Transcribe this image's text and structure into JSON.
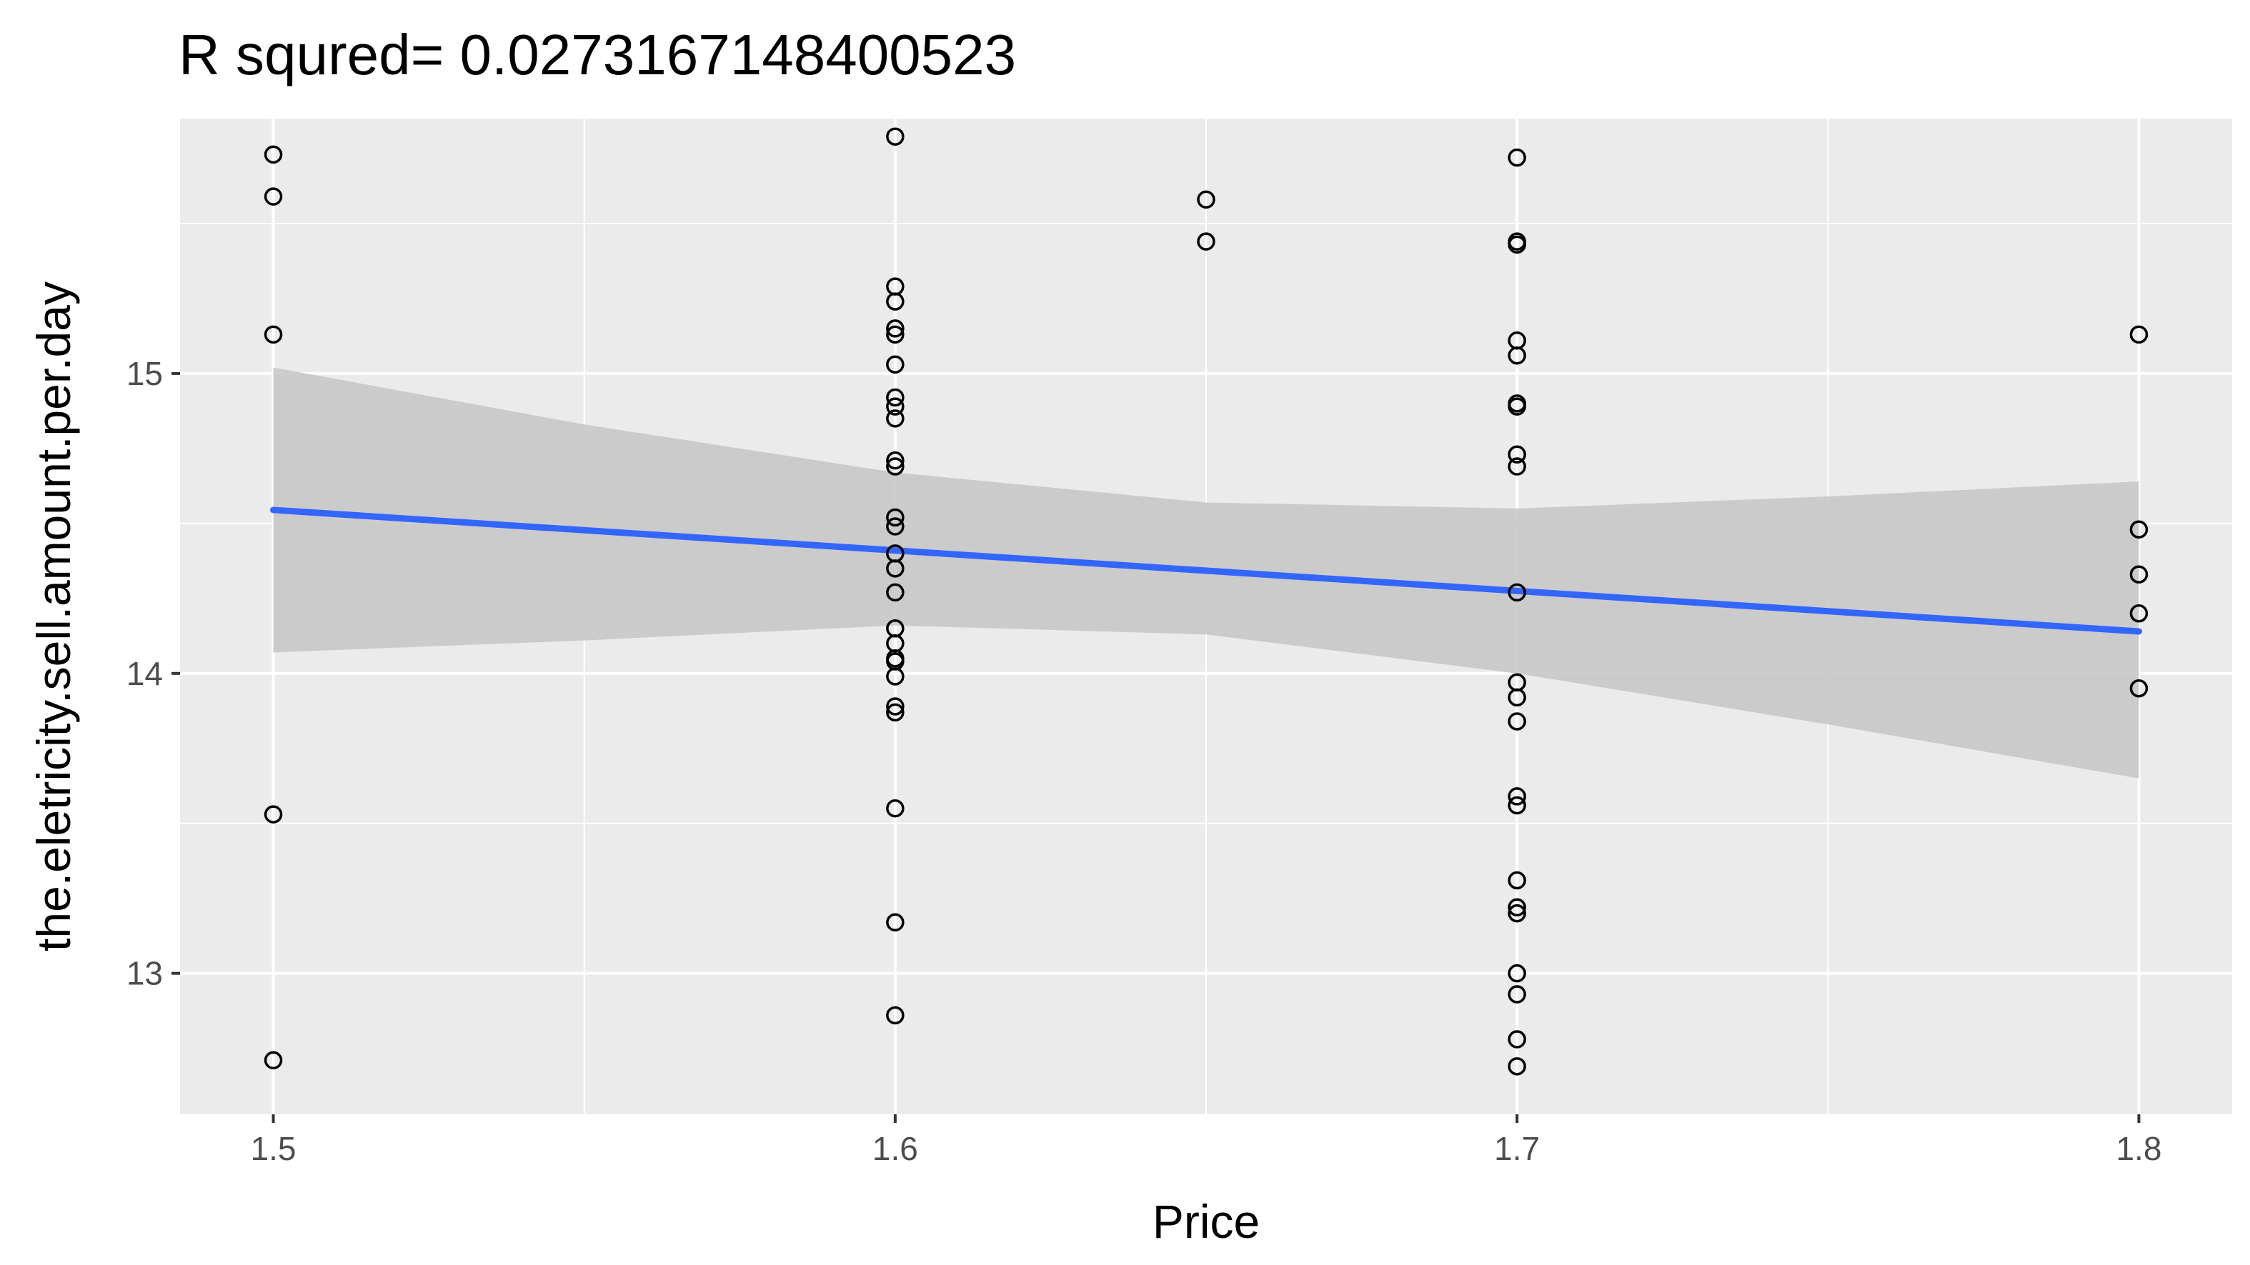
{
  "chart_data": {
    "type": "scatter",
    "title": "R squred= 0.0273167148400523",
    "xlabel": "Price",
    "ylabel": "the.eletricity.sell.amount.per.day",
    "xlim": [
      1.485,
      1.815
    ],
    "ylim": [
      12.53,
      15.85
    ],
    "x_ticks": [
      1.5,
      1.6,
      1.7,
      1.8
    ],
    "x_tick_labels": [
      "1.5",
      "1.6",
      "1.7",
      "1.8"
    ],
    "y_ticks": [
      13,
      14,
      15
    ],
    "y_tick_labels": [
      "13",
      "14",
      "15"
    ],
    "grid": true,
    "background": "#ebebeb",
    "grid_color": "#ffffff",
    "point_color": "#000000",
    "fit_color": "#3366ff",
    "band_color": "#c8c8c8",
    "points": [
      {
        "x": 1.5,
        "y": 15.73
      },
      {
        "x": 1.5,
        "y": 15.59
      },
      {
        "x": 1.5,
        "y": 15.13
      },
      {
        "x": 1.5,
        "y": 13.53
      },
      {
        "x": 1.5,
        "y": 12.71
      },
      {
        "x": 1.6,
        "y": 15.79
      },
      {
        "x": 1.6,
        "y": 15.29
      },
      {
        "x": 1.6,
        "y": 15.24
      },
      {
        "x": 1.6,
        "y": 15.15
      },
      {
        "x": 1.6,
        "y": 15.13
      },
      {
        "x": 1.6,
        "y": 15.03
      },
      {
        "x": 1.6,
        "y": 14.92
      },
      {
        "x": 1.6,
        "y": 14.89
      },
      {
        "x": 1.6,
        "y": 14.85
      },
      {
        "x": 1.6,
        "y": 14.71
      },
      {
        "x": 1.6,
        "y": 14.69
      },
      {
        "x": 1.6,
        "y": 14.52
      },
      {
        "x": 1.6,
        "y": 14.49
      },
      {
        "x": 1.6,
        "y": 14.4
      },
      {
        "x": 1.6,
        "y": 14.35
      },
      {
        "x": 1.6,
        "y": 14.27
      },
      {
        "x": 1.6,
        "y": 14.15
      },
      {
        "x": 1.6,
        "y": 14.1
      },
      {
        "x": 1.6,
        "y": 14.05
      },
      {
        "x": 1.6,
        "y": 14.04
      },
      {
        "x": 1.6,
        "y": 13.99
      },
      {
        "x": 1.6,
        "y": 13.89
      },
      {
        "x": 1.6,
        "y": 13.87
      },
      {
        "x": 1.6,
        "y": 13.55
      },
      {
        "x": 1.6,
        "y": 13.17
      },
      {
        "x": 1.6,
        "y": 12.86
      },
      {
        "x": 1.65,
        "y": 15.58
      },
      {
        "x": 1.65,
        "y": 15.44
      },
      {
        "x": 1.7,
        "y": 15.72
      },
      {
        "x": 1.7,
        "y": 15.44
      },
      {
        "x": 1.7,
        "y": 15.43
      },
      {
        "x": 1.7,
        "y": 15.11
      },
      {
        "x": 1.7,
        "y": 15.06
      },
      {
        "x": 1.7,
        "y": 14.9
      },
      {
        "x": 1.7,
        "y": 14.89
      },
      {
        "x": 1.7,
        "y": 14.73
      },
      {
        "x": 1.7,
        "y": 14.69
      },
      {
        "x": 1.7,
        "y": 14.27
      },
      {
        "x": 1.7,
        "y": 13.97
      },
      {
        "x": 1.7,
        "y": 13.92
      },
      {
        "x": 1.7,
        "y": 13.84
      },
      {
        "x": 1.7,
        "y": 13.59
      },
      {
        "x": 1.7,
        "y": 13.56
      },
      {
        "x": 1.7,
        "y": 13.31
      },
      {
        "x": 1.7,
        "y": 13.22
      },
      {
        "x": 1.7,
        "y": 13.2
      },
      {
        "x": 1.7,
        "y": 13.0
      },
      {
        "x": 1.7,
        "y": 12.93
      },
      {
        "x": 1.7,
        "y": 12.78
      },
      {
        "x": 1.7,
        "y": 12.69
      },
      {
        "x": 1.8,
        "y": 15.13
      },
      {
        "x": 1.8,
        "y": 14.48
      },
      {
        "x": 1.8,
        "y": 14.33
      },
      {
        "x": 1.8,
        "y": 14.2
      },
      {
        "x": 1.8,
        "y": 13.95
      }
    ],
    "fit_line": {
      "x": [
        1.5,
        1.6,
        1.7,
        1.8
      ],
      "y": [
        14.545,
        14.41,
        14.275,
        14.14
      ]
    },
    "confidence_band": {
      "x": [
        1.5,
        1.55,
        1.6,
        1.65,
        1.7,
        1.75,
        1.8
      ],
      "upper": [
        15.02,
        14.83,
        14.67,
        14.57,
        14.55,
        14.59,
        14.64
      ],
      "lower": [
        14.07,
        14.11,
        14.16,
        14.13,
        14.0,
        13.83,
        13.65
      ]
    }
  }
}
